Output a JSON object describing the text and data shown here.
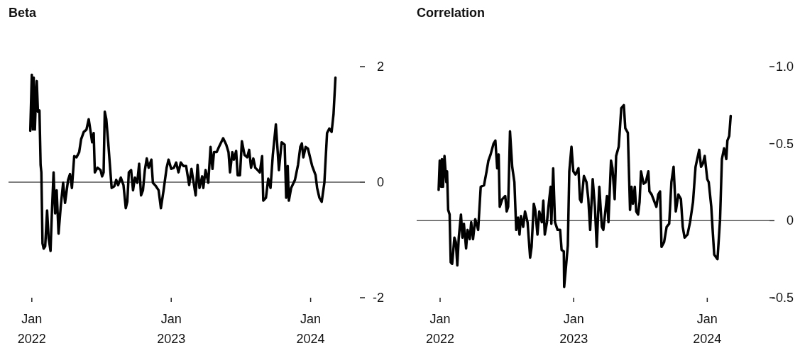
{
  "chart_data": [
    {
      "type": "line",
      "title": "Beta",
      "xlim": [
        "2021-11-01",
        "2024-05-09"
      ],
      "xticks": [
        {
          "value": "2022-01-01",
          "label": "Jan\n2022"
        },
        {
          "value": "2023-01-01",
          "label": "Jan\n2023"
        },
        {
          "value": "2024-01-01",
          "label": "Jan\n2024"
        }
      ],
      "ylim": [
        -2,
        2
      ],
      "yticks": [
        -2,
        0,
        2
      ],
      "ref_lines": [
        {
          "axis": "y",
          "value": 0,
          "color": "#555555"
        }
      ],
      "x": [
        "2021-12-28",
        "2022-01-01",
        "2022-01-04",
        "2022-01-06",
        "2022-01-09",
        "2022-01-12",
        "2022-01-14",
        "2022-01-17",
        "2022-01-21",
        "2022-01-24",
        "2022-01-26",
        "2022-01-29",
        "2022-02-01",
        "2022-02-05",
        "2022-02-10",
        "2022-02-14",
        "2022-02-19",
        "2022-02-23",
        "2022-02-27",
        "2022-03-03",
        "2022-03-07",
        "2022-03-12",
        "2022-03-18",
        "2022-03-24",
        "2022-03-29",
        "2022-04-06",
        "2022-04-11",
        "2022-04-16",
        "2022-04-22",
        "2022-04-28",
        "2022-05-05",
        "2022-05-10",
        "2022-05-17",
        "2022-05-24",
        "2022-05-30",
        "2022-06-04",
        "2022-06-08",
        "2022-06-12",
        "2022-06-15",
        "2022-06-22",
        "2022-06-30",
        "2022-07-04",
        "2022-07-08",
        "2022-07-11",
        "2022-07-15",
        "2022-07-20",
        "2022-07-29",
        "2022-08-05",
        "2022-08-10",
        "2022-08-15",
        "2022-08-22",
        "2022-08-29",
        "2022-09-04",
        "2022-09-08",
        "2022-09-12",
        "2022-09-18",
        "2022-09-23",
        "2022-09-28",
        "2022-10-04",
        "2022-10-09",
        "2022-10-14",
        "2022-10-19",
        "2022-10-24",
        "2022-10-29",
        "2022-11-03",
        "2022-11-10",
        "2022-11-14",
        "2022-11-22",
        "2022-11-29",
        "2022-12-05",
        "2022-12-12",
        "2022-12-20",
        "2022-12-25",
        "2023-01-01",
        "2023-01-08",
        "2023-01-14",
        "2023-01-20",
        "2023-01-26",
        "2023-02-02",
        "2023-02-09",
        "2023-02-17",
        "2023-02-23",
        "2023-03-06",
        "2023-03-11",
        "2023-03-16",
        "2023-03-23",
        "2023-03-26",
        "2023-04-01",
        "2023-04-08",
        "2023-04-14",
        "2023-04-19",
        "2023-04-23",
        "2023-04-30",
        "2023-05-06",
        "2023-05-17",
        "2023-05-25",
        "2023-05-31",
        "2023-06-04",
        "2023-06-10",
        "2023-06-14",
        "2023-06-20",
        "2023-06-24",
        "2023-06-30",
        "2023-07-05",
        "2023-07-12",
        "2023-07-19",
        "2023-07-24",
        "2023-07-29",
        "2023-08-04",
        "2023-08-09",
        "2023-08-15",
        "2023-08-21",
        "2023-08-27",
        "2023-08-30",
        "2023-09-06",
        "2023-09-12",
        "2023-09-18",
        "2023-09-24",
        "2023-10-02",
        "2023-10-10",
        "2023-10-17",
        "2023-10-25",
        "2023-10-29",
        "2023-11-02",
        "2023-11-05",
        "2023-11-11",
        "2023-11-21",
        "2023-11-29",
        "2023-12-05",
        "2023-12-09",
        "2023-12-13",
        "2023-12-19",
        "2023-12-25",
        "2024-01-05",
        "2024-01-14",
        "2024-01-18",
        "2024-01-24",
        "2024-01-30",
        "2024-02-06",
        "2024-02-13",
        "2024-02-19",
        "2024-02-25",
        "2024-03-01",
        "2024-03-06"
      ],
      "series": [
        {
          "color": "#000000",
          "values": [
            0.89,
            1.86,
            0.91,
            1.81,
            0.91,
            1.53,
            1.75,
            1.22,
            1.24,
            0.3,
            0.17,
            -1.06,
            -1.15,
            -1.11,
            -0.49,
            -0.97,
            -1.19,
            -0.45,
            0.17,
            -0.54,
            -0.14,
            -0.89,
            -0.4,
            -0.01,
            -0.36,
            0.04,
            0.14,
            -0.1,
            0.45,
            0.43,
            0.52,
            0.74,
            0.87,
            0.91,
            1.09,
            0.87,
            0.69,
            0.85,
            0.17,
            0.25,
            0.21,
            0.1,
            0.17,
            1.22,
            1.09,
            0.69,
            -0.1,
            -0.07,
            0.04,
            -0.05,
            0.08,
            -0.05,
            -0.45,
            -0.34,
            0.17,
            0.21,
            -0.14,
            0.08,
            -0.01,
            0.32,
            -0.23,
            -0.14,
            0.21,
            0.41,
            0.25,
            0.39,
            -0.01,
            -0.07,
            -0.14,
            -0.45,
            -0.14,
            0.25,
            0.39,
            0.23,
            0.25,
            0.34,
            0.17,
            0.34,
            0.28,
            0.28,
            -0.05,
            0.23,
            -0.23,
            0.3,
            -0.1,
            0.1,
            -0.1,
            0.21,
            -0.01,
            0.61,
            0.23,
            0.52,
            0.52,
            0.61,
            0.76,
            0.65,
            0.52,
            0.17,
            0.52,
            0.39,
            0.54,
            0.12,
            0.12,
            0.71,
            0.47,
            0.43,
            0.56,
            0.25,
            0.41,
            0.25,
            0.21,
            0.17,
            0.45,
            -0.32,
            -0.27,
            0.06,
            -0.1,
            0.47,
            1.0,
            0.21,
            0.69,
            0.65,
            -0.27,
            0.28,
            -0.32,
            -0.1,
            0.04,
            0.3,
            0.61,
            0.67,
            0.43,
            0.61,
            0.58,
            0.28,
            0.12,
            -0.1,
            -0.27,
            -0.34,
            -0.01,
            0.85,
            0.93,
            0.87,
            1.18,
            1.81
          ]
        }
      ]
    },
    {
      "type": "line",
      "title": "Correlation",
      "xlim": [
        "2021-10-29",
        "2024-06-19"
      ],
      "xticks": [
        {
          "value": "2022-01-01",
          "label": "Jan\n2022"
        },
        {
          "value": "2023-01-01",
          "label": "Jan\n2023"
        },
        {
          "value": "2024-01-01",
          "label": "Jan\n2024"
        }
      ],
      "ylim": [
        -0.5,
        1.0
      ],
      "yticks": [
        {
          "value": -0.5,
          "label": "-0.5"
        },
        0,
        {
          "value": 0.5,
          "label": "0.5"
        },
        {
          "value": 1.0,
          "label": "1.0"
        }
      ],
      "ref_lines": [
        {
          "axis": "y",
          "value": 0,
          "color": "#555555"
        }
      ],
      "x": [
        "2021-12-28",
        "2021-12-31",
        "2022-01-04",
        "2022-01-06",
        "2022-01-09",
        "2022-01-13",
        "2022-01-18",
        "2022-01-20",
        "2022-01-23",
        "2022-01-27",
        "2022-01-30",
        "2022-02-03",
        "2022-02-09",
        "2022-02-13",
        "2022-02-17",
        "2022-02-21",
        "2022-02-27",
        "2022-03-03",
        "2022-03-07",
        "2022-03-13",
        "2022-03-17",
        "2022-03-23",
        "2022-03-27",
        "2022-04-01",
        "2022-04-07",
        "2022-04-15",
        "2022-04-22",
        "2022-05-01",
        "2022-05-08",
        "2022-05-13",
        "2022-05-19",
        "2022-05-27",
        "2022-06-01",
        "2022-06-06",
        "2022-06-10",
        "2022-06-13",
        "2022-06-20",
        "2022-06-28",
        "2022-07-02",
        "2022-07-06",
        "2022-07-11",
        "2022-07-17",
        "2022-07-23",
        "2022-07-28",
        "2022-08-02",
        "2022-08-06",
        "2022-08-10",
        "2022-08-16",
        "2022-08-21",
        "2022-08-28",
        "2022-09-04",
        "2022-09-08",
        "2022-09-14",
        "2022-09-18",
        "2022-09-24",
        "2022-09-29",
        "2022-10-06",
        "2022-10-10",
        "2022-10-14",
        "2022-10-20",
        "2022-10-24",
        "2022-10-30",
        "2022-11-01",
        "2022-11-06",
        "2022-11-11",
        "2022-11-18",
        "2022-11-25",
        "2022-11-29",
        "2022-12-05",
        "2022-12-06",
        "2022-12-12",
        "2022-12-16",
        "2022-12-20",
        "2022-12-26",
        "2022-12-31",
        "2023-01-06",
        "2023-01-14",
        "2023-01-18",
        "2023-01-22",
        "2023-01-29",
        "2023-02-05",
        "2023-02-10",
        "2023-02-15",
        "2023-02-22",
        "2023-02-28",
        "2023-03-05",
        "2023-03-12",
        "2023-03-19",
        "2023-03-23",
        "2023-04-02",
        "2023-04-06",
        "2023-04-13",
        "2023-04-17",
        "2023-04-23",
        "2023-04-27",
        "2023-05-04",
        "2023-05-11",
        "2023-05-18",
        "2023-05-22",
        "2023-05-29",
        "2023-06-04",
        "2023-06-08",
        "2023-06-12",
        "2023-06-17",
        "2023-06-21",
        "2023-06-26",
        "2023-06-30",
        "2023-07-04",
        "2023-07-11",
        "2023-07-17",
        "2023-07-24",
        "2023-07-27",
        "2023-08-02",
        "2023-08-15",
        "2023-08-20",
        "2023-08-25",
        "2023-08-29",
        "2023-09-05",
        "2023-09-12",
        "2023-09-19",
        "2023-09-25",
        "2023-10-01",
        "2023-10-07",
        "2023-10-14",
        "2023-10-21",
        "2023-10-26",
        "2023-10-31",
        "2023-11-08",
        "2023-11-15",
        "2023-11-23",
        "2023-11-30",
        "2023-12-10",
        "2023-12-15",
        "2023-12-20",
        "2023-12-25",
        "2024-01-01",
        "2024-01-05",
        "2024-01-12",
        "2024-01-16",
        "2024-01-20",
        "2024-01-29",
        "2024-02-05",
        "2024-02-10",
        "2024-02-16",
        "2024-02-22",
        "2024-02-25",
        "2024-03-01",
        "2024-03-05"
      ],
      "series": [
        {
          "color": "#000000",
          "values": [
            0.2,
            0.39,
            0.22,
            0.4,
            0.22,
            0.42,
            0.25,
            0.32,
            0.07,
            0.04,
            -0.27,
            -0.28,
            -0.11,
            -0.14,
            -0.29,
            -0.11,
            0.04,
            -0.11,
            -0.02,
            -0.18,
            -0.06,
            -0.12,
            -0.01,
            -0.12,
            0.01,
            -0.06,
            0.22,
            0.23,
            0.32,
            0.39,
            0.43,
            0.5,
            0.52,
            0.34,
            0.43,
            0.09,
            0.14,
            0.16,
            0.06,
            0.09,
            0.58,
            0.35,
            0.25,
            -0.06,
            0.02,
            -0.09,
            0.03,
            -0.04,
            0.06,
            -0.01,
            -0.24,
            -0.17,
            0.11,
            0.07,
            -0.09,
            0.06,
            -0.01,
            0.13,
            -0.09,
            -0.01,
            0.09,
            0.22,
            -0.02,
            0.34,
            -0.01,
            -0.06,
            -0.06,
            -0.19,
            -0.2,
            -0.43,
            -0.27,
            -0.16,
            0.32,
            0.48,
            0.32,
            0.3,
            0.34,
            0.14,
            0.12,
            0.29,
            0.25,
            0.14,
            -0.06,
            0.27,
            0.09,
            -0.17,
            0.22,
            -0.04,
            -0.06,
            0.16,
            -0.01,
            0.39,
            0.34,
            0.14,
            0.42,
            0.48,
            0.73,
            0.75,
            0.6,
            0.57,
            0.07,
            0.22,
            0.11,
            0.22,
            0.06,
            0.04,
            0.12,
            0.32,
            0.24,
            0.25,
            0.32,
            0.19,
            0.17,
            0.09,
            0.17,
            0.19,
            -0.17,
            -0.14,
            -0.04,
            -0.02,
            0.25,
            0.35,
            0.06,
            0.17,
            0.14,
            -0.04,
            -0.11,
            -0.09,
            -0.01,
            0.12,
            0.35,
            0.46,
            0.35,
            0.37,
            0.42,
            0.27,
            0.25,
            0.09,
            -0.07,
            -0.22,
            -0.25,
            0.01,
            0.4,
            0.47,
            0.4,
            0.52,
            0.55,
            0.68
          ]
        }
      ]
    }
  ]
}
